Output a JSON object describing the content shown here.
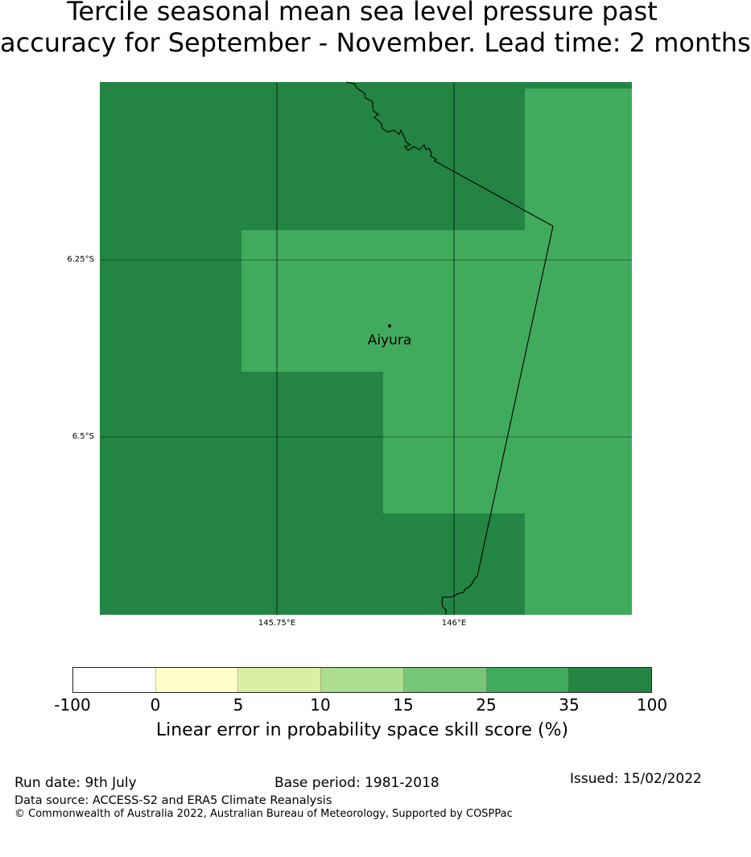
{
  "title_line1": "Tercile seasonal mean sea level pressure past",
  "title_line2": "accuracy for September - November. Lead time: 2 months",
  "map": {
    "lat_labels": [
      "6.25°S",
      "6.5°S"
    ],
    "lon_labels": [
      "145.75°E",
      "146°E"
    ],
    "location_label": "Aiyura",
    "colors": {
      "dark_green": "#238443",
      "light_green": "#41ab5d",
      "border": "#000000"
    }
  },
  "colorbar": {
    "ticks": [
      "-100",
      "0",
      "5",
      "10",
      "15",
      "25",
      "35",
      "100"
    ],
    "colors": [
      "#ffffff",
      "#ffffcc",
      "#d9f0a3",
      "#addd8e",
      "#78c679",
      "#41ab5d",
      "#238443"
    ],
    "label": "Linear error in probability space skill score (%)"
  },
  "footer": {
    "run_date": "Run date: 9th July",
    "base_period": "Base period: 1981-2018",
    "issued": "Issued: 15/02/2022",
    "data_source": "Data source: ACCESS-S2 and ERA5 Climate Reanalysis",
    "copyright": "© Commonwealth of Australia 2022, Australian Bureau of Meteorology, Supported by COSPPac"
  }
}
